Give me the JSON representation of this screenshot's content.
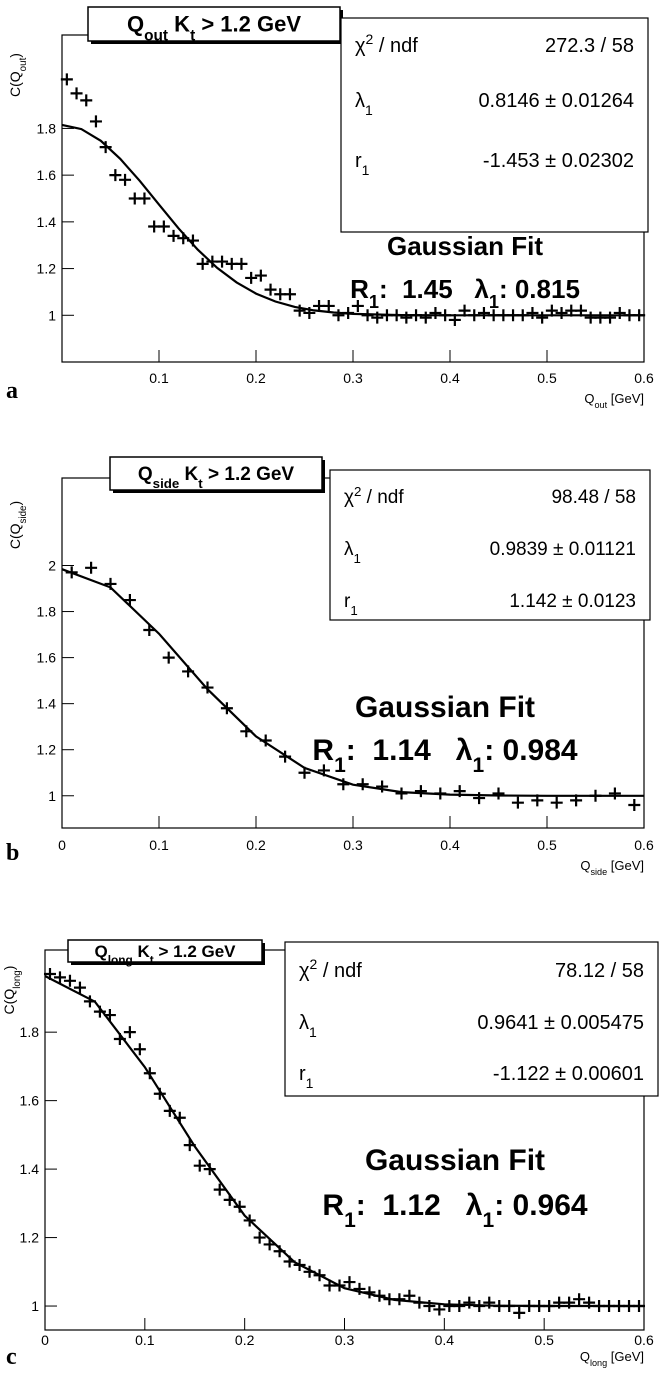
{
  "chart_data": [
    {
      "type": "scatter",
      "panel_label": "a",
      "title": [
        {
          "text": "Q"
        },
        {
          "text": "out",
          "shift": "sub"
        },
        {
          "text": " K"
        },
        {
          "text": "t",
          "shift": "sub"
        },
        {
          "text": " > 1.2 GeV"
        }
      ],
      "ylabel": [
        {
          "text": "C(Q"
        },
        {
          "text": "out",
          "shift": "sub"
        },
        {
          "text": ")"
        }
      ],
      "xlabel": [
        {
          "text": "Q"
        },
        {
          "text": "out",
          "shift": "sub"
        },
        {
          "text": " [GeV]"
        }
      ],
      "stats": [
        {
          "label": [
            {
              "text": "χ"
            },
            {
              "text": "2",
              "shift": "super"
            },
            {
              "text": " / ndf"
            }
          ],
          "value": "272.3 / 58"
        },
        {
          "label": [
            {
              "text": "λ"
            },
            {
              "text": "1",
              "shift": "sub"
            }
          ],
          "value": "0.8146 ± 0.01264"
        },
        {
          "label": [
            {
              "text": "r"
            },
            {
              "text": "1",
              "shift": "sub"
            }
          ],
          "value": "-1.453 ± 0.02302"
        }
      ],
      "annotations": [
        [
          {
            "text": "Gaussian Fit"
          }
        ],
        [
          {
            "text": "R"
          },
          {
            "text": "1",
            "shift": "sub"
          },
          {
            "text": ":  1.45   λ"
          },
          {
            "text": "1",
            "shift": "sub"
          },
          {
            "text": ": 0.815"
          }
        ]
      ],
      "x": [
        0.005,
        0.015,
        0.025,
        0.035,
        0.045,
        0.055,
        0.065,
        0.075,
        0.085,
        0.095,
        0.105,
        0.115,
        0.125,
        0.135,
        0.145,
        0.155,
        0.165,
        0.175,
        0.185,
        0.195,
        0.205,
        0.215,
        0.225,
        0.235,
        0.245,
        0.255,
        0.265,
        0.275,
        0.285,
        0.295,
        0.305,
        0.315,
        0.325,
        0.335,
        0.345,
        0.355,
        0.365,
        0.375,
        0.385,
        0.395,
        0.405,
        0.415,
        0.425,
        0.435,
        0.445,
        0.455,
        0.465,
        0.475,
        0.485,
        0.495,
        0.505,
        0.515,
        0.525,
        0.535,
        0.545,
        0.555,
        0.565,
        0.575,
        0.585,
        0.595
      ],
      "values": [
        2.01,
        1.95,
        1.92,
        1.83,
        1.72,
        1.6,
        1.58,
        1.5,
        1.5,
        1.38,
        1.38,
        1.34,
        1.33,
        1.32,
        1.22,
        1.23,
        1.23,
        1.22,
        1.22,
        1.16,
        1.17,
        1.11,
        1.09,
        1.09,
        1.02,
        1.01,
        1.04,
        1.04,
        1.0,
        1.01,
        1.04,
        1.0,
        0.99,
        1.0,
        1.0,
        0.99,
        1.0,
        0.99,
        1.01,
        1.0,
        0.98,
        1.02,
        1.0,
        1.01,
        1.0,
        1.0,
        1.0,
        1.0,
        1.01,
        0.99,
        1.02,
        1.01,
        1.02,
        1.02,
        0.99,
        0.99,
        0.99,
        1.01,
        1.0,
        1.0
      ],
      "fit": {
        "x": [
          0,
          0.02,
          0.04,
          0.06,
          0.08,
          0.1,
          0.12,
          0.14,
          0.16,
          0.18,
          0.2,
          0.22,
          0.24,
          0.26,
          0.28,
          0.3,
          0.35,
          0.4,
          0.5,
          0.6
        ],
        "values": [
          1.815,
          1.797,
          1.747,
          1.67,
          1.576,
          1.474,
          1.373,
          1.281,
          1.203,
          1.141,
          1.093,
          1.059,
          1.036,
          1.021,
          1.012,
          1.006,
          1.001,
          1.0,
          1.0,
          1.0
        ]
      },
      "color": "#000000",
      "marker": "cross",
      "xlim": [
        0,
        0.6
      ],
      "ylim": [
        0.8,
        2.2
      ],
      "xticks": [
        0.1,
        0.2,
        0.3,
        0.4,
        0.5,
        0.6
      ],
      "yticks": [
        1,
        1.2,
        1.4,
        1.6,
        1.8
      ]
    },
    {
      "type": "scatter",
      "panel_label": "b",
      "title": [
        {
          "text": "Q"
        },
        {
          "text": "side",
          "shift": "sub"
        },
        {
          "text": " K"
        },
        {
          "text": "t",
          "shift": "sub"
        },
        {
          "text": " > 1.2 GeV"
        }
      ],
      "ylabel": [
        {
          "text": "C(Q"
        },
        {
          "text": "side",
          "shift": "sub"
        },
        {
          "text": ")"
        }
      ],
      "xlabel": [
        {
          "text": "Q"
        },
        {
          "text": "side",
          "shift": "sub"
        },
        {
          "text": " [GeV]"
        }
      ],
      "stats": [
        {
          "label": [
            {
              "text": "χ"
            },
            {
              "text": "2",
              "shift": "super"
            },
            {
              "text": " / ndf"
            }
          ],
          "value": "98.48 / 58"
        },
        {
          "label": [
            {
              "text": "λ"
            },
            {
              "text": "1",
              "shift": "sub"
            }
          ],
          "value": "0.9839 ± 0.01121"
        },
        {
          "label": [
            {
              "text": "r"
            },
            {
              "text": "1",
              "shift": "sub"
            }
          ],
          "value": "1.142 ± 0.0123"
        }
      ],
      "annotations": [
        [
          {
            "text": "Gaussian Fit"
          }
        ],
        [
          {
            "text": "R"
          },
          {
            "text": "1",
            "shift": "sub"
          },
          {
            "text": ":  1.14   λ"
          },
          {
            "text": "1",
            "shift": "sub"
          },
          {
            "text": ": 0.984"
          }
        ]
      ],
      "x": [
        0.01,
        0.03,
        0.05,
        0.07,
        0.09,
        0.11,
        0.13,
        0.15,
        0.17,
        0.19,
        0.21,
        0.23,
        0.25,
        0.27,
        0.29,
        0.31,
        0.33,
        0.35,
        0.37,
        0.39,
        0.41,
        0.43,
        0.45,
        0.47,
        0.49,
        0.51,
        0.53,
        0.55,
        0.57,
        0.59
      ],
      "values": [
        1.97,
        1.99,
        1.92,
        1.85,
        1.72,
        1.6,
        1.54,
        1.47,
        1.38,
        1.28,
        1.24,
        1.17,
        1.1,
        1.11,
        1.05,
        1.05,
        1.04,
        1.01,
        1.02,
        1.01,
        1.02,
        0.99,
        1.01,
        0.97,
        0.98,
        0.97,
        0.98,
        1.0,
        1.01,
        0.96
      ],
      "fit": {
        "x": [
          0,
          0.05,
          0.1,
          0.15,
          0.2,
          0.25,
          0.3,
          0.35,
          0.4,
          0.45,
          0.5,
          0.6
        ],
        "values": [
          1.984,
          1.905,
          1.704,
          1.463,
          1.258,
          1.121,
          1.048,
          1.016,
          1.005,
          1.001,
          1.0,
          1.0
        ]
      },
      "color": "#000000",
      "marker": "cross",
      "xlim": [
        0,
        0.6
      ],
      "ylim": [
        0.86,
        2.38
      ],
      "xticks": [
        0,
        0.1,
        0.2,
        0.3,
        0.4,
        0.5,
        0.6
      ],
      "yticks": [
        1,
        1.2,
        1.4,
        1.6,
        1.8,
        2
      ]
    },
    {
      "type": "scatter",
      "panel_label": "c",
      "title": [
        {
          "text": "Q"
        },
        {
          "text": "long",
          "shift": "sub"
        },
        {
          "text": " K"
        },
        {
          "text": "t",
          "shift": "sub"
        },
        {
          "text": " > 1.2 GeV"
        }
      ],
      "ylabel": [
        {
          "text": "C(Q"
        },
        {
          "text": "long",
          "shift": "sub"
        },
        {
          "text": ")"
        }
      ],
      "xlabel": [
        {
          "text": "Q"
        },
        {
          "text": "long",
          "shift": "sub"
        },
        {
          "text": " [GeV]"
        }
      ],
      "stats": [
        {
          "label": [
            {
              "text": "χ"
            },
            {
              "text": "2",
              "shift": "super"
            },
            {
              "text": " / ndf"
            }
          ],
          "value": "78.12 / 58"
        },
        {
          "label": [
            {
              "text": "λ"
            },
            {
              "text": "1",
              "shift": "sub"
            }
          ],
          "value": "0.9641 ± 0.005475"
        },
        {
          "label": [
            {
              "text": "r"
            },
            {
              "text": "1",
              "shift": "sub"
            }
          ],
          "value": "-1.122 ± 0.00601"
        }
      ],
      "annotations": [
        [
          {
            "text": "Gaussian Fit"
          }
        ],
        [
          {
            "text": "R"
          },
          {
            "text": "1",
            "shift": "sub"
          },
          {
            "text": ":  1.12   λ"
          },
          {
            "text": "1",
            "shift": "sub"
          },
          {
            "text": ": 0.964"
          }
        ]
      ],
      "x": [
        0.005,
        0.015,
        0.025,
        0.035,
        0.045,
        0.055,
        0.065,
        0.075,
        0.085,
        0.095,
        0.105,
        0.115,
        0.125,
        0.135,
        0.145,
        0.155,
        0.165,
        0.175,
        0.185,
        0.195,
        0.205,
        0.215,
        0.225,
        0.235,
        0.245,
        0.255,
        0.265,
        0.275,
        0.285,
        0.295,
        0.305,
        0.315,
        0.325,
        0.335,
        0.345,
        0.355,
        0.365,
        0.375,
        0.385,
        0.395,
        0.405,
        0.415,
        0.425,
        0.435,
        0.445,
        0.455,
        0.465,
        0.475,
        0.485,
        0.495,
        0.505,
        0.515,
        0.525,
        0.535,
        0.545,
        0.555,
        0.565,
        0.575,
        0.585,
        0.595
      ],
      "values": [
        1.97,
        1.96,
        1.95,
        1.93,
        1.89,
        1.86,
        1.85,
        1.78,
        1.8,
        1.75,
        1.68,
        1.62,
        1.57,
        1.55,
        1.47,
        1.41,
        1.4,
        1.34,
        1.31,
        1.29,
        1.25,
        1.2,
        1.18,
        1.16,
        1.13,
        1.12,
        1.1,
        1.09,
        1.06,
        1.06,
        1.07,
        1.05,
        1.04,
        1.03,
        1.02,
        1.02,
        1.03,
        1.01,
        1.0,
        0.99,
        1.0,
        1.0,
        1.01,
        1.0,
        1.01,
        1.0,
        1.0,
        0.98,
        1.0,
        1.0,
        1.0,
        1.01,
        1.01,
        1.02,
        1.01,
        1.0,
        1.0,
        1.0,
        1.0,
        1.0
      ],
      "fit": {
        "x": [
          0,
          0.05,
          0.1,
          0.15,
          0.2,
          0.25,
          0.3,
          0.35,
          0.4,
          0.45,
          0.5,
          0.6
        ],
        "values": [
          1.964,
          1.889,
          1.698,
          1.466,
          1.264,
          1.128,
          1.052,
          1.018,
          1.005,
          1.001,
          1.0,
          1.0
        ]
      },
      "color": "#000000",
      "marker": "cross",
      "xlim": [
        0,
        0.6
      ],
      "ylim": [
        0.93,
        2.04
      ],
      "xticks": [
        0,
        0.1,
        0.2,
        0.3,
        0.4,
        0.5,
        0.6
      ],
      "yticks": [
        1,
        1.2,
        1.4,
        1.6,
        1.8
      ]
    }
  ]
}
